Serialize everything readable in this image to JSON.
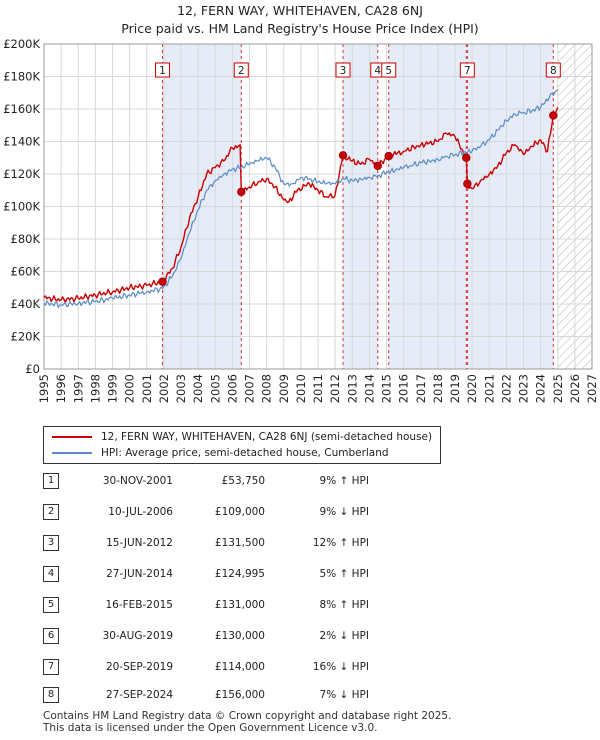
{
  "chart_data": {
    "type": "line",
    "title": "12, FERN WAY, WHITEHAVEN, CA28 6NJ",
    "subtitle": "Price paid vs. HM Land Registry's House Price Index (HPI)",
    "xlabel": "",
    "ylabel": "",
    "xlim": [
      1995,
      2027
    ],
    "ylim": [
      0,
      200000
    ],
    "x_ticks": [
      "1995",
      "1996",
      "1997",
      "1998",
      "1999",
      "2000",
      "2001",
      "2002",
      "2003",
      "2004",
      "2005",
      "2006",
      "2007",
      "2008",
      "2009",
      "2010",
      "2011",
      "2012",
      "2013",
      "2014",
      "2015",
      "2016",
      "2017",
      "2018",
      "2019",
      "2020",
      "2021",
      "2022",
      "2023",
      "2024",
      "2025",
      "2026",
      "2027"
    ],
    "y_ticks": [
      {
        "value": 0,
        "label": "£0"
      },
      {
        "value": 20000,
        "label": "£20K"
      },
      {
        "value": 40000,
        "label": "£40K"
      },
      {
        "value": 60000,
        "label": "£60K"
      },
      {
        "value": 80000,
        "label": "£80K"
      },
      {
        "value": 100000,
        "label": "£100K"
      },
      {
        "value": 120000,
        "label": "£120K"
      },
      {
        "value": 140000,
        "label": "£140K"
      },
      {
        "value": 160000,
        "label": "£160K"
      },
      {
        "value": 180000,
        "label": "£180K"
      },
      {
        "value": 200000,
        "label": "£200K"
      }
    ],
    "grid": true,
    "hatched_future_from": 2025.0,
    "series": [
      {
        "name": "12, FERN WAY, WHITEHAVEN, CA28 6NJ (semi-detached house)",
        "color": "#cc0000",
        "x": [
          1995.0,
          1996.0,
          1997.0,
          1998.0,
          1999.0,
          2000.0,
          2001.0,
          2001.92,
          2002.5,
          2003.0,
          2003.5,
          2004.0,
          2004.5,
          2005.0,
          2005.5,
          2006.0,
          2006.45,
          2006.52,
          2007.0,
          2007.5,
          2008.0,
          2008.5,
          2009.0,
          2009.3,
          2009.8,
          2010.5,
          2011.0,
          2011.5,
          2012.0,
          2012.46,
          2013.0,
          2013.5,
          2014.0,
          2014.49,
          2015.13,
          2016.0,
          2017.0,
          2018.0,
          2018.5,
          2019.0,
          2019.66,
          2019.72,
          2020.0,
          2020.5,
          2021.0,
          2021.5,
          2022.0,
          2022.5,
          2023.0,
          2023.5,
          2024.0,
          2024.4,
          2024.74,
          2025.0
        ],
        "y": [
          44000,
          42500,
          43500,
          45500,
          47500,
          50000,
          51500,
          53750,
          62000,
          75000,
          93000,
          106000,
          120000,
          124000,
          128000,
          136000,
          138000,
          109000,
          112000,
          115000,
          117000,
          112000,
          104000,
          103000,
          110000,
          114000,
          110000,
          106000,
          107000,
          131500,
          128000,
          126000,
          129000,
          124995,
          131000,
          134000,
          138000,
          140000,
          145000,
          143000,
          130000,
          114000,
          111000,
          116000,
          120000,
          125000,
          133000,
          138000,
          132000,
          137000,
          141000,
          134000,
          156000,
          161000
        ]
      },
      {
        "name": "HPI: Average price, semi-detached house, Cumberland",
        "color": "#5b8cc8",
        "x": [
          1995.0,
          1996.0,
          1997.0,
          1998.0,
          1999.0,
          2000.0,
          2001.0,
          2001.92,
          2002.5,
          2003.0,
          2003.5,
          2004.0,
          2004.5,
          2005.0,
          2005.5,
          2006.0,
          2006.5,
          2007.0,
          2007.5,
          2008.0,
          2008.5,
          2009.0,
          2009.5,
          2010.0,
          2010.5,
          2011.0,
          2011.5,
          2012.0,
          2012.5,
          2013.0,
          2013.5,
          2014.0,
          2014.5,
          2015.0,
          2015.5,
          2016.0,
          2016.5,
          2017.0,
          2017.5,
          2018.0,
          2018.5,
          2019.0,
          2019.5,
          2020.0,
          2020.5,
          2021.0,
          2021.5,
          2022.0,
          2022.5,
          2023.0,
          2023.5,
          2024.0,
          2024.5,
          2025.0
        ],
        "y": [
          40500,
          39500,
          40500,
          41500,
          43500,
          45500,
          47500,
          49500,
          57000,
          68000,
          84000,
          98000,
          110000,
          116000,
          120000,
          123000,
          124000,
          126000,
          128000,
          130000,
          124000,
          114000,
          114000,
          118000,
          117000,
          115000,
          114000,
          114000,
          117000,
          116000,
          117000,
          118000,
          119000,
          121000,
          122000,
          124000,
          125000,
          127000,
          128000,
          129000,
          131000,
          132000,
          133000,
          134000,
          137000,
          141000,
          147000,
          153000,
          157000,
          158000,
          159000,
          161000,
          167000,
          172000
        ]
      }
    ],
    "sales": [
      {
        "id": "1",
        "x": 2001.92,
        "y": 53750
      },
      {
        "id": "2",
        "x": 2006.52,
        "y": 109000
      },
      {
        "id": "3",
        "x": 2012.46,
        "y": 131500
      },
      {
        "id": "4",
        "x": 2014.49,
        "y": 124995
      },
      {
        "id": "5",
        "x": 2015.13,
        "y": 131000
      },
      {
        "id": "6",
        "x": 2019.66,
        "y": 130000
      },
      {
        "id": "7",
        "x": 2019.72,
        "y": 114000
      },
      {
        "id": "8",
        "x": 2024.74,
        "y": 156000
      }
    ],
    "marker_labels": [
      {
        "id": "1",
        "x": 2001.92
      },
      {
        "id": "2",
        "x": 2006.52
      },
      {
        "id": "3",
        "x": 2012.46
      },
      {
        "id": "4",
        "x": 2014.49
      },
      {
        "id": "5",
        "x": 2015.13
      },
      {
        "id": "7",
        "x": 2019.72
      },
      {
        "id": "8",
        "x": 2024.74
      }
    ]
  },
  "legend": {
    "property_label": "12, FERN WAY, WHITEHAVEN, CA28 6NJ (semi-detached house)",
    "hpi_label": "HPI: Average price, semi-detached house, Cumberland"
  },
  "table": [
    {
      "num": "1",
      "date": "30-NOV-2001",
      "price": "£53,750",
      "hpi": "9% ↑ HPI"
    },
    {
      "num": "2",
      "date": "10-JUL-2006",
      "price": "£109,000",
      "hpi": "9% ↓ HPI"
    },
    {
      "num": "3",
      "date": "15-JUN-2012",
      "price": "£131,500",
      "hpi": "12% ↑ HPI"
    },
    {
      "num": "4",
      "date": "27-JUN-2014",
      "price": "£124,995",
      "hpi": "5% ↑ HPI"
    },
    {
      "num": "5",
      "date": "16-FEB-2015",
      "price": "£131,000",
      "hpi": "8% ↑ HPI"
    },
    {
      "num": "6",
      "date": "30-AUG-2019",
      "price": "£130,000",
      "hpi": "2% ↓ HPI"
    },
    {
      "num": "7",
      "date": "20-SEP-2019",
      "price": "£114,000",
      "hpi": "16% ↓ HPI"
    },
    {
      "num": "8",
      "date": "27-SEP-2024",
      "price": "£156,000",
      "hpi": "7% ↓ HPI"
    }
  ],
  "footer": {
    "line1": "Contains HM Land Registry data © Crown copyright and database right 2025.",
    "line2": "This data is licensed under the Open Government Licence v3.0."
  },
  "colors": {
    "property": "#cc0000",
    "hpi": "#5b8cc8",
    "shade": "#e6ecf7",
    "grid": "#d8d8d8"
  }
}
